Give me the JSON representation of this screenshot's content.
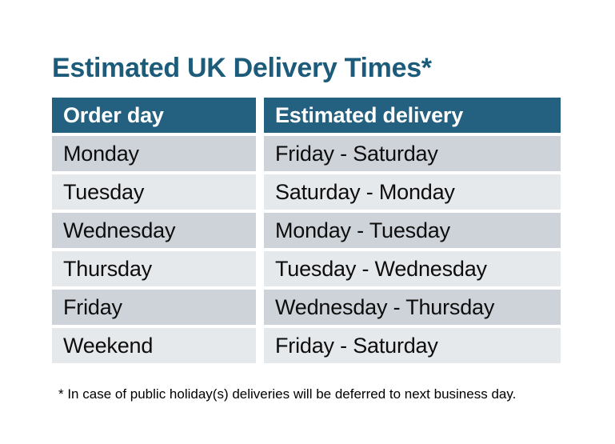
{
  "title": "Estimated UK Delivery Times*",
  "table": {
    "columns": [
      "Order day",
      "Estimated delivery"
    ],
    "rows": [
      {
        "order_day": "Monday",
        "estimated_delivery": "Friday - Saturday"
      },
      {
        "order_day": "Tuesday",
        "estimated_delivery": "Saturday - Monday"
      },
      {
        "order_day": "Wednesday",
        "estimated_delivery": "Monday - Tuesday"
      },
      {
        "order_day": "Thursday",
        "estimated_delivery": "Tuesday - Wednesday"
      },
      {
        "order_day": "Friday",
        "estimated_delivery": "Wednesday - Thursday"
      },
      {
        "order_day": "Weekend",
        "estimated_delivery": "Friday - Saturday"
      }
    ]
  },
  "footnote": "* In case of public holiday(s) deliveries will be deferred to next business day.",
  "colors": {
    "header_bg": "#24607f",
    "row_dark": "#ced2d9",
    "row_light": "#e6e9ec",
    "title_text": "#1d5b7a",
    "header_text": "#ffffff",
    "body_text": "#0d0d0d",
    "page_bg": "#ffffff"
  },
  "chart_data": {
    "type": "table",
    "title": "Estimated UK Delivery Times*",
    "columns": [
      "Order day",
      "Estimated delivery"
    ],
    "rows": [
      [
        "Monday",
        "Friday - Saturday"
      ],
      [
        "Tuesday",
        "Saturday - Monday"
      ],
      [
        "Wednesday",
        "Monday - Tuesday"
      ],
      [
        "Thursday",
        "Tuesday - Wednesday"
      ],
      [
        "Friday",
        "Wednesday - Thursday"
      ],
      [
        "Weekend",
        "Friday - Saturday"
      ]
    ],
    "footnote": "* In case of public holiday(s) deliveries will be deferred to next business day."
  }
}
